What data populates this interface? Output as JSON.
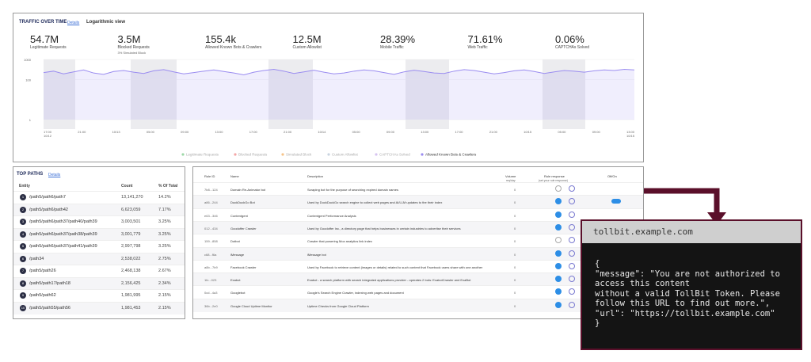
{
  "traffic": {
    "title": "TRAFFIC OVER TIME",
    "details": "Details",
    "view": "Logarithmic view",
    "stats": [
      {
        "value": "54.7M",
        "label": "Legitimate Requests"
      },
      {
        "value": "3.5M",
        "label": "Blocked Requests",
        "note": "3% Simulated Block"
      },
      {
        "value": "155.4k",
        "label": "Allowed Known Bots & Crawlers"
      },
      {
        "value": "12.5M",
        "label": "Custom Allowlist"
      },
      {
        "value": "28.39%",
        "label": "Mobile Traffic"
      },
      {
        "value": "71.61%",
        "label": "Web Traffic"
      },
      {
        "value": "0.06%",
        "label": "CAPTCHAs Solved"
      }
    ],
    "chart": {
      "type": "line",
      "log_scale": true,
      "ylim": [
        1,
        1000
      ],
      "yticks": [
        1,
        100,
        1000
      ],
      "x_labels": [
        "17:00 10/12",
        "21:00",
        "10/13",
        "05:00",
        "09:00",
        "13:00",
        "17:00",
        "21:00",
        "10/14",
        "05:00",
        "09:00",
        "13:00",
        "17:00",
        "21:00",
        "10/15",
        "05:00",
        "09:00",
        "13:00 10/15"
      ],
      "series": [
        {
          "name": "Legitimate Requests",
          "color": "#9ed9a8",
          "values": []
        },
        {
          "name": "Blocked Requests",
          "color": "#f4a6a6",
          "values": []
        },
        {
          "name": "Simulated Block",
          "color": "#f6c48a",
          "values": []
        },
        {
          "name": "Custom Allowlist",
          "color": "#c9d4e0",
          "values": []
        },
        {
          "name": "CAPTCHAs Solved",
          "color": "#d6c4f0",
          "values": []
        },
        {
          "name": "Allowed Known Bots & Crawlers",
          "color": "#9a8cf0",
          "values": [
            220,
            260,
            190,
            240,
            300,
            210,
            180,
            250,
            280,
            230,
            200,
            270,
            310,
            240,
            190,
            220,
            260,
            300,
            250,
            210,
            170,
            230,
            280,
            320,
            260,
            200,
            240,
            290,
            230,
            190,
            210,
            260,
            300,
            270,
            220,
            180,
            240,
            290,
            250,
            210,
            200,
            260,
            310,
            280,
            230,
            190,
            220,
            270,
            300,
            250,
            200,
            240,
            280,
            260,
            230,
            270,
            300,
            280,
            320,
            300
          ]
        }
      ]
    }
  },
  "top_paths": {
    "title": "TOP PATHS",
    "details": "Details",
    "columns": [
      "Entity",
      "Count",
      "% Of Total"
    ],
    "rows": [
      {
        "rank": "1",
        "path": "/path5/path6/path7",
        "count": "13,141,270",
        "pct": "14.2%"
      },
      {
        "rank": "2",
        "path": "/path5/path6/path42",
        "count": "6,623,059",
        "pct": "7.17%"
      },
      {
        "rank": "3",
        "path": "/path5/path6/path37/path40/path39",
        "count": "3,003,501",
        "pct": "3.25%"
      },
      {
        "rank": "4",
        "path": "/path5/path6/path37/path38/path39",
        "count": "3,001,779",
        "pct": "3.25%"
      },
      {
        "rank": "5",
        "path": "/path5/path6/path37/path41/path39",
        "count": "2,997,798",
        "pct": "3.25%"
      },
      {
        "rank": "6",
        "path": "/path34",
        "count": "2,538,022",
        "pct": "2.75%"
      },
      {
        "rank": "7",
        "path": "/path5/path26",
        "count": "2,468,138",
        "pct": "2.67%"
      },
      {
        "rank": "8",
        "path": "/path5/path17/path18",
        "count": "2,156,425",
        "pct": "2.34%"
      },
      {
        "rank": "9",
        "path": "/path5/path62",
        "count": "1,981,995",
        "pct": "2.15%"
      },
      {
        "rank": "10",
        "path": "/path5/path55/path56",
        "count": "1,981,453",
        "pct": "2.15%"
      }
    ]
  },
  "rules": {
    "columns": [
      "Rule ID",
      "Name",
      "Description",
      "Volume",
      "Rule response",
      "Off/On"
    ],
    "volume_sub": "req/day",
    "response_sub": "(set your rule response)",
    "rows": [
      {
        "id": "7b8...124",
        "name": "Domain Re-Animator bot",
        "desc": "Scraping bot for the purpose of searching expired domain names",
        "volume": "0"
      },
      {
        "id": "a86...244",
        "name": "DuckDuckGo Bot",
        "desc": "Used by DuckDuckGo search engine to collect web pages and AI/LLM updates to the their index",
        "volume": "0"
      },
      {
        "id": "e63...346",
        "name": "Contentgent",
        "desc": "Contentgent Performance Analysis",
        "volume": "0"
      },
      {
        "id": "012...434",
        "name": "Goodoffer Crawler",
        "desc": "Used by Goodoffer Inc., a directory page that helps businesses in certain industries to advertise their services",
        "volume": "0"
      },
      {
        "id": "159...858",
        "name": "Dotbot",
        "desc": "Crawler that powering Moz analytics link index",
        "volume": "0"
      },
      {
        "id": "c68...f6a",
        "name": "iMessage",
        "desc": "iMessage bot",
        "volume": "0"
      },
      {
        "id": "a8b...7b9",
        "name": "Facebook Crawler",
        "desc": "Used by Facebook to retrieve content (images or details) related to such content that Facebook users share with one another",
        "volume": "0"
      },
      {
        "id": "1fc...023",
        "name": "Exabot",
        "desc": "Exabot - a search platform with search integrated applications provider - operates 2 bots: ExabotCrawler and ExaBot",
        "volume": "0"
      },
      {
        "id": "0cd...4a3",
        "name": "Googlebot",
        "desc": "Google's Search Engine Crawler, indexing web pages and document",
        "volume": "0"
      },
      {
        "id": "36b...2e0",
        "name": "Google Cloud Uptime Monitor",
        "desc": "Uptime Checks from Google Cloud Platform",
        "volume": "0"
      }
    ]
  },
  "terminal": {
    "host": "tollbit.example.com",
    "lines": [
      "{",
      "\"message\": \"You are not authorized to",
      "access this content",
      "without a valid TollBit Token. Please",
      "follow this URL to find out more.\",",
      "\"url\": \"https://tollbit.example.com\"",
      "}"
    ]
  }
}
